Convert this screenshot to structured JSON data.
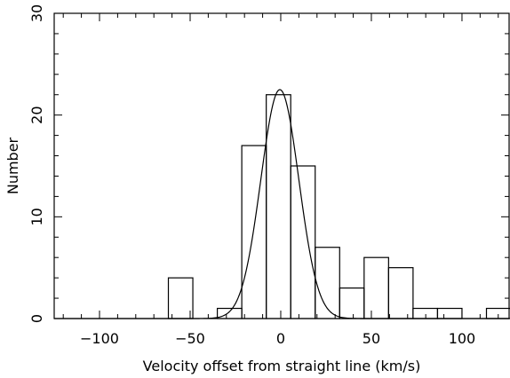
{
  "chart_data": {
    "type": "bar",
    "subtype": "histogram",
    "title": "",
    "xlabel": "Velocity offset from straight line (km/s)",
    "ylabel": "Number",
    "xlim": [
      -125,
      126
    ],
    "ylim": [
      0,
      30
    ],
    "x_ticks": [
      -100,
      -50,
      0,
      50,
      100
    ],
    "y_ticks": [
      0,
      10,
      20,
      30
    ],
    "bin_width": 13.5,
    "bins": [
      {
        "start": -62,
        "end": -48.5,
        "count": 4
      },
      {
        "start": -35,
        "end": -21.5,
        "count": 1
      },
      {
        "start": -21.5,
        "end": -8,
        "count": 17
      },
      {
        "start": -8,
        "end": 5.5,
        "count": 22
      },
      {
        "start": 5.5,
        "end": 19,
        "count": 15
      },
      {
        "start": 19,
        "end": 32.5,
        "count": 7
      },
      {
        "start": 32.5,
        "end": 46,
        "count": 3
      },
      {
        "start": 46,
        "end": 59.5,
        "count": 6
      },
      {
        "start": 59.5,
        "end": 73,
        "count": 5
      },
      {
        "start": 73,
        "end": 86.5,
        "count": 1
      },
      {
        "start": 86.5,
        "end": 100,
        "count": 1
      },
      {
        "start": 113.5,
        "end": 127,
        "count": 1
      }
    ],
    "gaussian_fit": {
      "amplitude": 22.5,
      "mean": -0.5,
      "sigma": 10.5
    },
    "grid": false,
    "legend": "none",
    "colors": {
      "line": "#000000",
      "background": "#ffffff"
    }
  }
}
